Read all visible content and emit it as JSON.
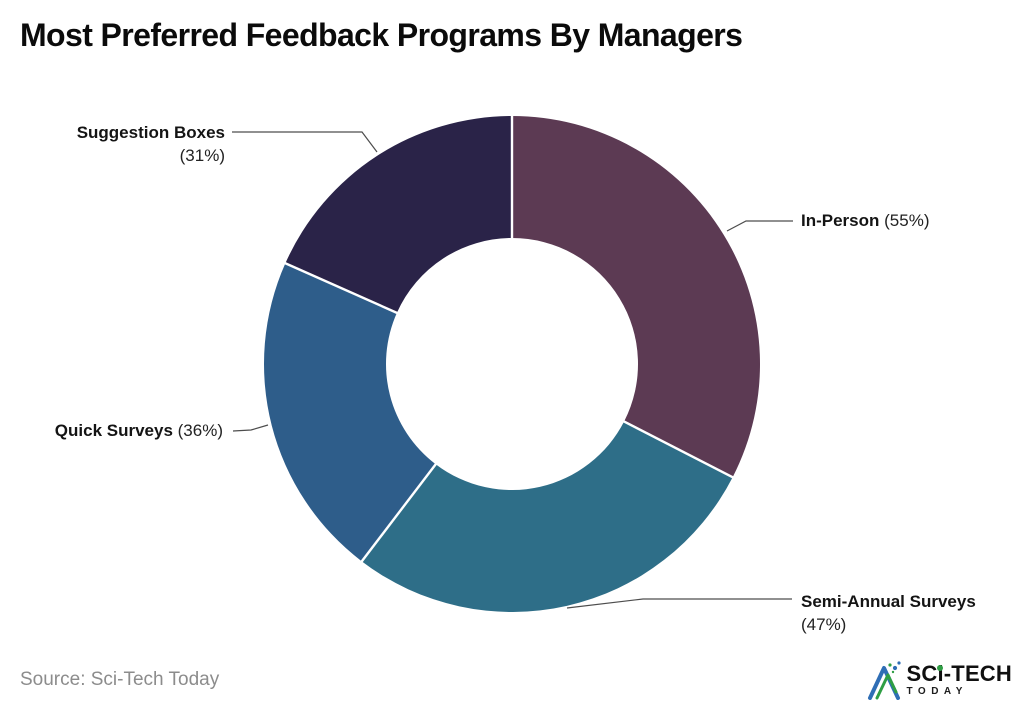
{
  "title": "Most Preferred Feedback Programs By Managers",
  "source": "Source: Sci-Tech Today",
  "logo": {
    "top": "SCi-TECH",
    "bottom": "TODAY"
  },
  "callouts": {
    "suggestion_boxes": {
      "name": "Suggestion Boxes",
      "value": "(31%)"
    },
    "in_person": {
      "name": "In-Person",
      "value": "(55%)"
    },
    "quick_surveys": {
      "name": "Quick Surveys",
      "value": "(36%)"
    },
    "semi_annual_surveys": {
      "name": "Semi-Annual Surveys",
      "value": "(47%)"
    }
  },
  "chart_data": {
    "type": "pie",
    "subtype": "donut",
    "title": "Most Preferred Feedback Programs By Managers",
    "categories": [
      "In-Person",
      "Semi-Annual Surveys",
      "Quick Surveys",
      "Suggestion Boxes"
    ],
    "values": [
      55,
      47,
      36,
      31
    ],
    "unit": "%",
    "colors": [
      "#5c3a53",
      "#2e6e88",
      "#2e5d8a",
      "#2a2348"
    ],
    "start_angle_deg": 0,
    "direction": "clockwise",
    "donut_hole_ratio": 0.51,
    "separator_color": "#ffffff",
    "legend_position": "none",
    "label_style": "external-callouts-with-leader-lines"
  }
}
